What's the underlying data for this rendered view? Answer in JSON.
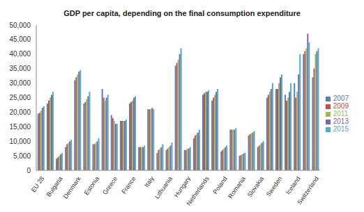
{
  "chart_data": {
    "type": "bar",
    "title": "GDP per capita, depending on the final consumption expenditure",
    "categories": [
      "EU 28",
      null,
      "Bulgaria",
      null,
      "Denmark",
      null,
      "Estonia",
      null,
      "Greece",
      null,
      "France",
      null,
      "Italy",
      null,
      "Lithuania",
      null,
      "Hungary",
      null,
      "Netherlands",
      null,
      "Poland",
      null,
      "Romania",
      null,
      "Slovakia",
      null,
      "Sweden",
      null,
      "Iceland",
      null,
      "Switzerland"
    ],
    "series": [
      {
        "name": "2007",
        "color": "#4F81BD",
        "values": [
          19500,
          23000,
          4000,
          8000,
          31000,
          23000,
          9000,
          28000,
          19000,
          17000,
          23000,
          8000,
          21000,
          6000,
          7000,
          36000,
          7000,
          11000,
          26000,
          24000,
          6500,
          14000,
          5000,
          12000,
          8000,
          25000,
          28000,
          26000,
          30000,
          40000,
          32000
        ]
      },
      {
        "name": "2009",
        "color": "#C0504D",
        "values": [
          19800,
          24000,
          4500,
          9000,
          32000,
          23500,
          9000,
          25000,
          18000,
          17000,
          23500,
          8000,
          21000,
          7000,
          7500,
          37000,
          7000,
          12000,
          26500,
          25000,
          7000,
          14000,
          5200,
          12500,
          8500,
          26000,
          28000,
          24000,
          25000,
          41000,
          35000
        ]
      },
      {
        "name": "2011",
        "color": "#9BBB59",
        "values": [
          20500,
          25000,
          5000,
          9500,
          33000,
          24500,
          9500,
          24000,
          17000,
          17000,
          24000,
          8000,
          21000,
          7500,
          8000,
          38000,
          7500,
          12500,
          27000,
          26000,
          7500,
          14000,
          5500,
          12800,
          9000,
          27000,
          30000,
          25000,
          27000,
          42000,
          40000
        ]
      },
      {
        "name": "2013",
        "color": "#8064A2",
        "values": [
          21500,
          26000,
          5500,
          10000,
          34000,
          25500,
          10000,
          25000,
          16000,
          17000,
          25000,
          8000,
          21500,
          8000,
          8500,
          40000,
          7500,
          13000,
          27000,
          27000,
          8000,
          14000,
          5800,
          13000,
          9500,
          28000,
          32000,
          27000,
          33000,
          47000,
          41000
        ]
      },
      {
        "name": "2015",
        "color": "#4BACC6",
        "values": [
          22000,
          27000,
          6000,
          10500,
          34500,
          27000,
          11000,
          26000,
          16000,
          17500,
          25500,
          8500,
          21000,
          9000,
          9500,
          42000,
          8000,
          14000,
          27500,
          28000,
          8500,
          14500,
          6000,
          13500,
          10000,
          30000,
          33000,
          30000,
          40000,
          44000,
          42000
        ]
      }
    ],
    "ylim": [
      0,
      50000
    ],
    "yticks": [
      0,
      {
        "value": 5000,
        "label": "5,000"
      },
      {
        "value": 10000,
        "label": "10,000"
      },
      {
        "value": 15000,
        "label": "15,000"
      },
      {
        "value": 20000,
        "label": "20,000"
      },
      {
        "value": 25000,
        "label": "25,000"
      },
      {
        "value": 30000,
        "label": "30,000"
      },
      {
        "value": 35000,
        "label": "35,000"
      },
      {
        "value": 40000,
        "label": "40,000"
      },
      {
        "value": 45000,
        "label": "45,000"
      },
      {
        "value": 50000,
        "label": "50,000"
      }
    ],
    "legend": "right"
  }
}
